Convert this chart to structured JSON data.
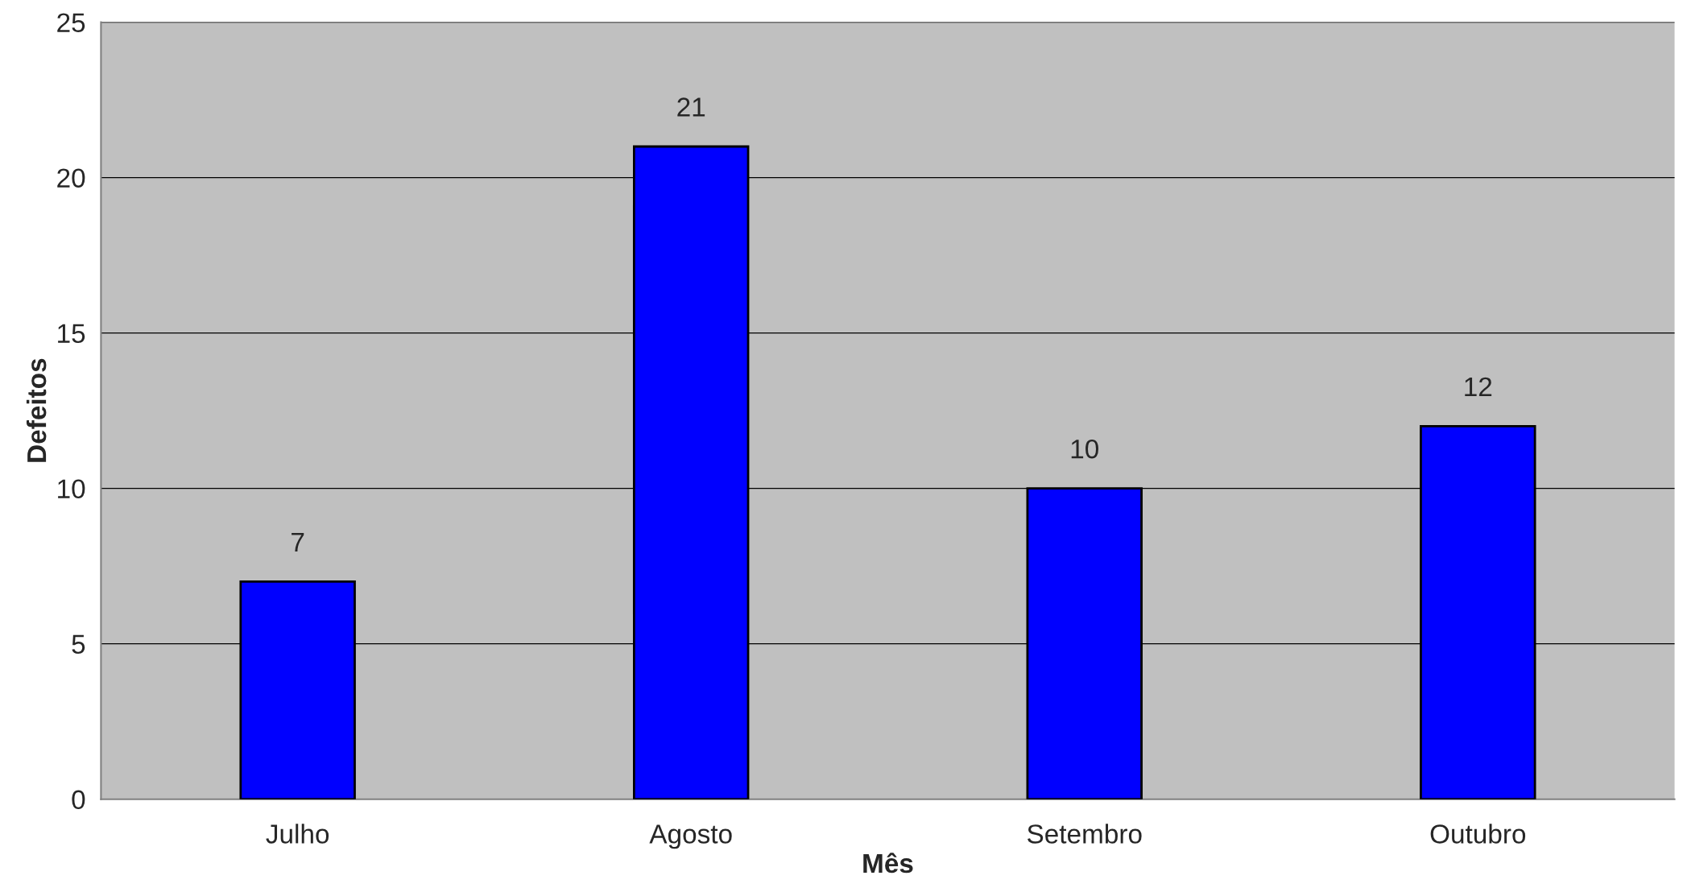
{
  "chart_data": {
    "type": "bar",
    "xlabel": "Mês",
    "ylabel": "Defeitos",
    "categories": [
      "Julho",
      "Agosto",
      "Setembro",
      "Outubro"
    ],
    "values": [
      7,
      21,
      10,
      12
    ],
    "color": "#0000ff",
    "ylim": [
      0,
      25
    ],
    "yticks": [
      0,
      5,
      10,
      15,
      20,
      25
    ],
    "grid": "y",
    "data_labels": true
  }
}
